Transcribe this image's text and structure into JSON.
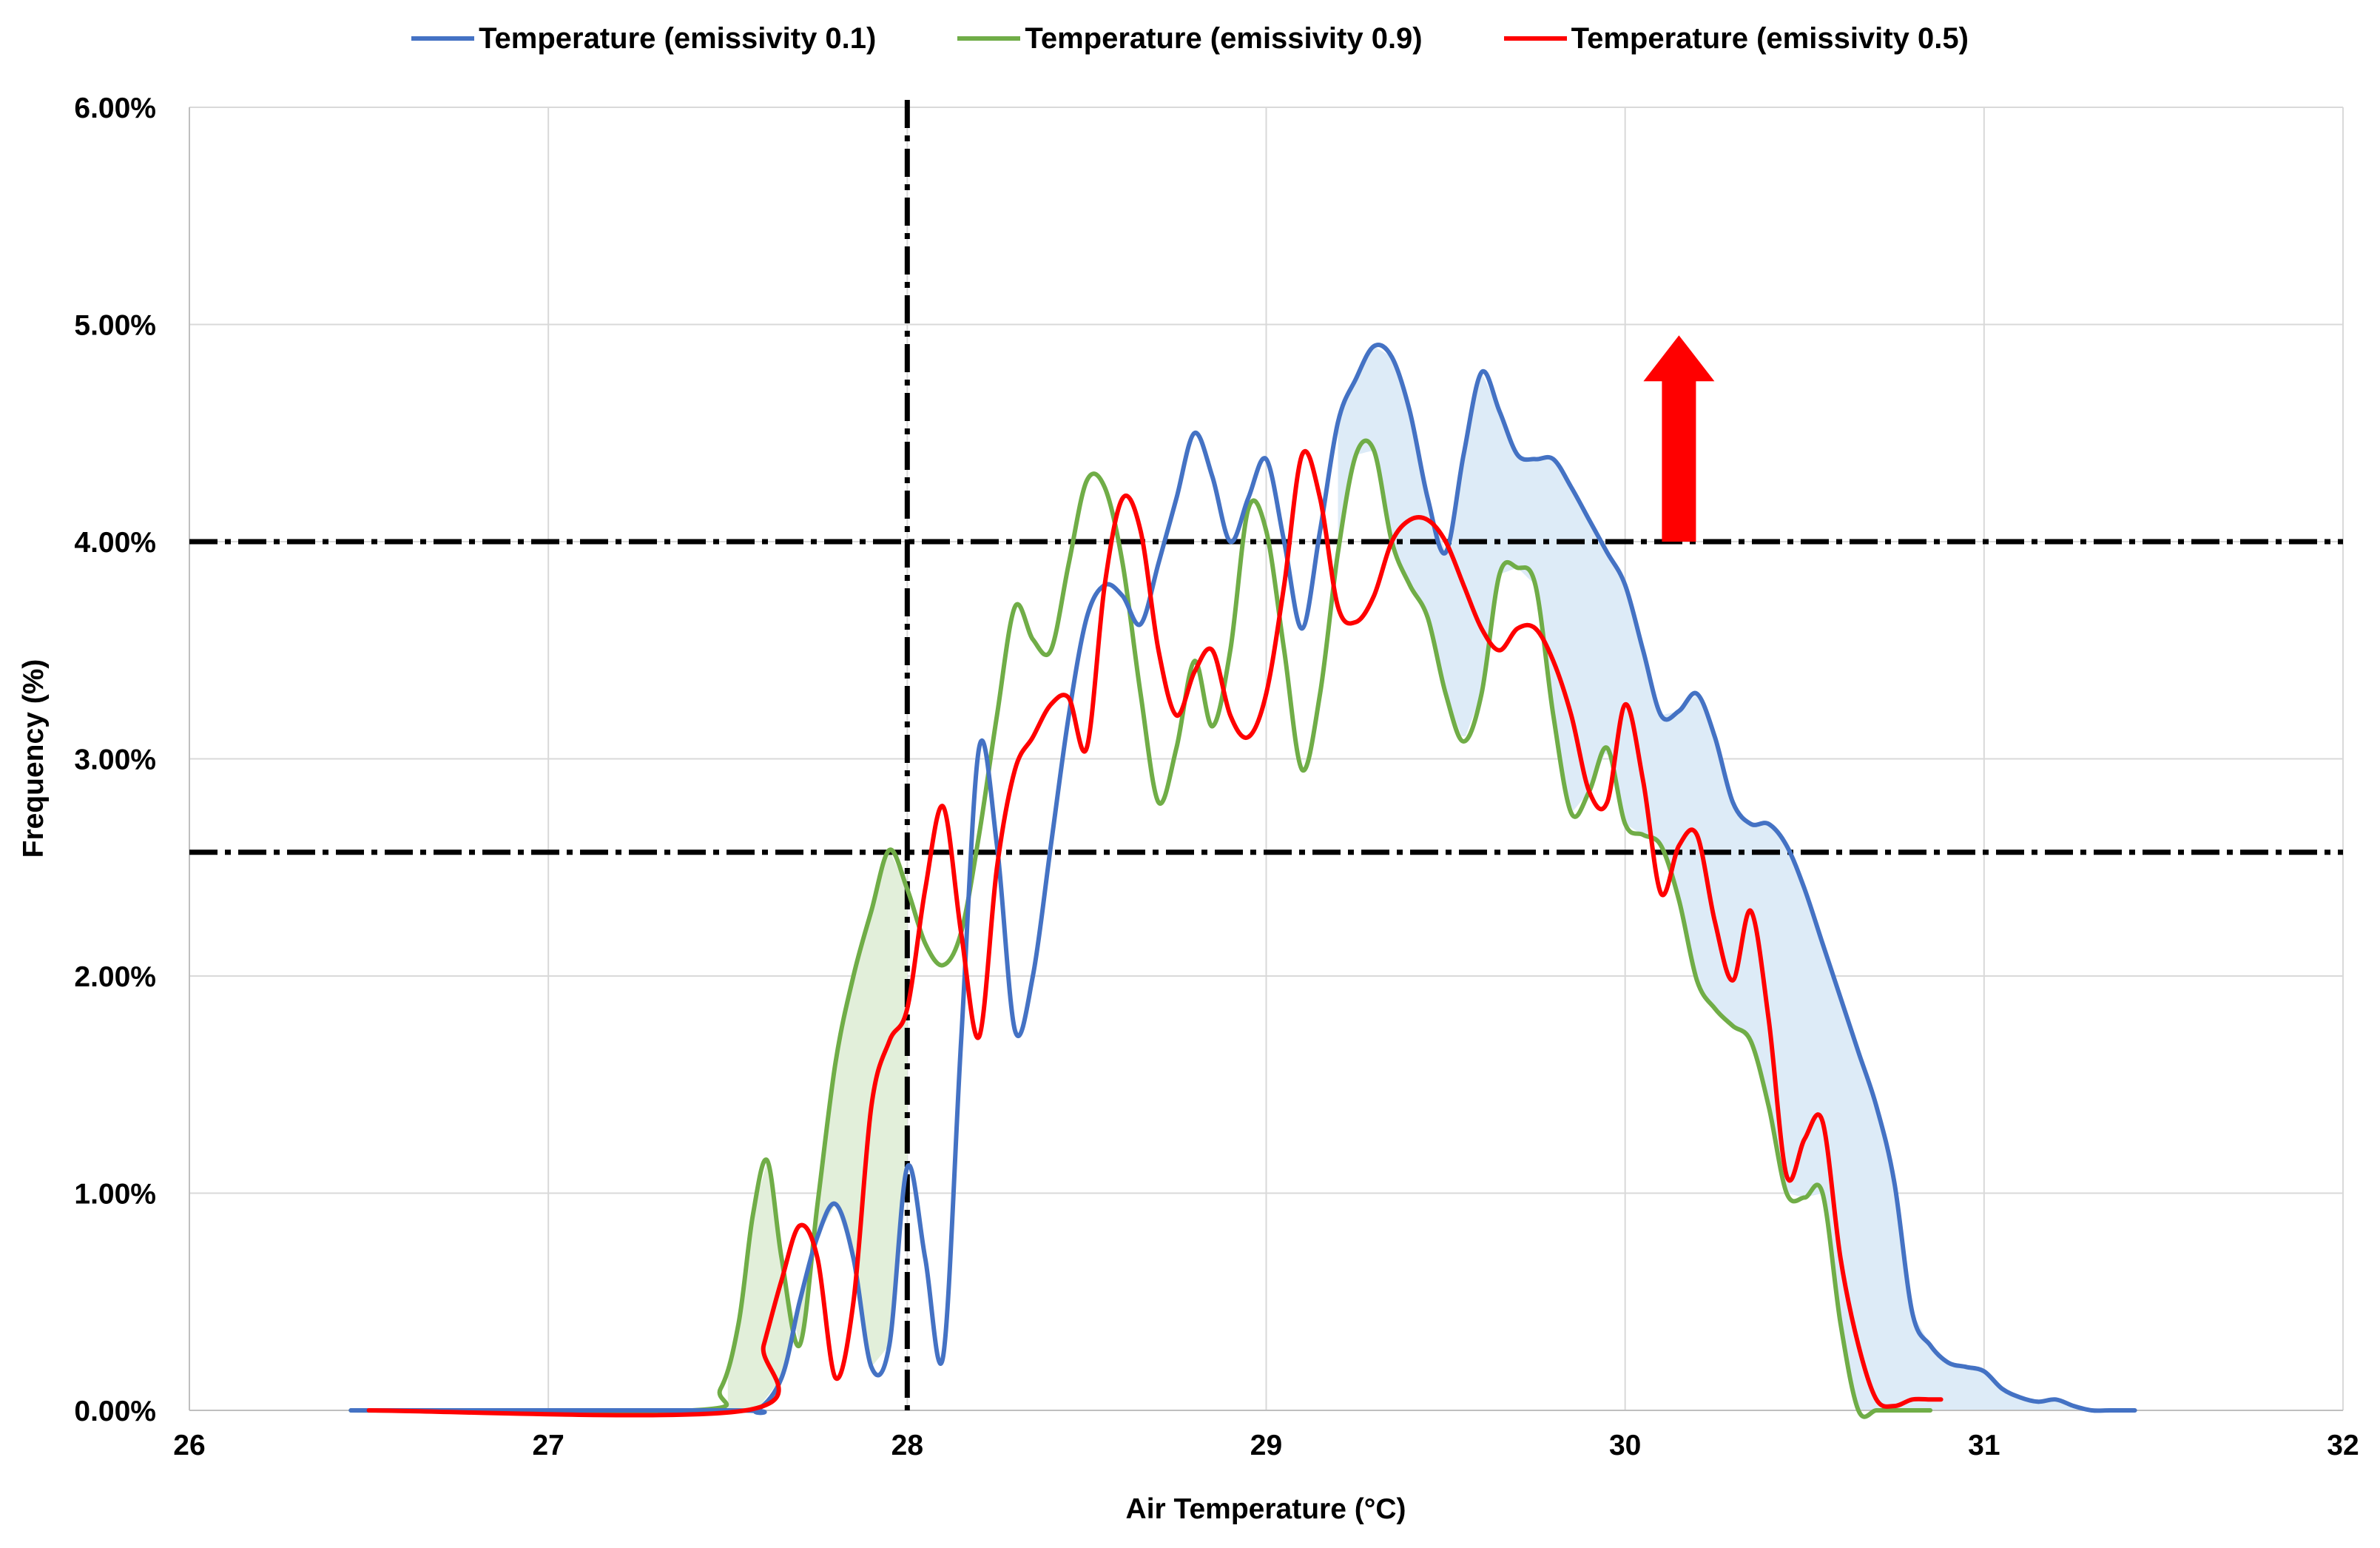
{
  "chart_data": {
    "type": "area",
    "title": "",
    "xlabel": "Air Temperature (°C)",
    "ylabel": "Frequency (%)",
    "xlim": [
      26,
      32
    ],
    "ylim": [
      0,
      6
    ],
    "x_ticks": [
      "26",
      "27",
      "28",
      "29",
      "30",
      "31",
      "32"
    ],
    "y_ticks": [
      "0.00%",
      "1.00%",
      "2.00%",
      "3.00%",
      "4.00%",
      "5.00%",
      "6.00%"
    ],
    "grid": true,
    "legend_position": "top",
    "series": [
      {
        "name": "Temperature (emissivity 0.1)",
        "color": "#4472C4",
        "x": [
          26.45,
          27.5,
          27.58,
          27.65,
          27.7,
          27.75,
          27.8,
          27.85,
          27.9,
          27.95,
          28.0,
          28.05,
          28.1,
          28.15,
          28.2,
          28.25,
          28.3,
          28.35,
          28.4,
          28.45,
          28.5,
          28.55,
          28.6,
          28.65,
          28.7,
          28.75,
          28.8,
          28.85,
          28.9,
          28.95,
          29.0,
          29.05,
          29.1,
          29.15,
          29.2,
          29.25,
          29.3,
          29.35,
          29.4,
          29.45,
          29.5,
          29.55,
          29.6,
          29.65,
          29.7,
          29.75,
          29.8,
          29.85,
          29.9,
          29.95,
          30.0,
          30.05,
          30.1,
          30.15,
          30.2,
          30.25,
          30.3,
          30.35,
          30.4,
          30.45,
          30.5,
          30.55,
          30.6,
          30.65,
          30.7,
          30.75,
          30.8,
          30.85,
          30.9,
          30.95,
          31.0,
          31.05,
          31.1,
          31.15,
          31.2,
          31.25,
          31.3,
          31.35,
          31.42
        ],
        "values": [
          0,
          0,
          0,
          0.15,
          0.5,
          0.8,
          0.95,
          0.7,
          0.2,
          0.3,
          1.12,
          0.7,
          0.25,
          1.7,
          3.05,
          2.6,
          1.75,
          2.0,
          2.6,
          3.2,
          3.65,
          3.8,
          3.75,
          3.62,
          3.9,
          4.2,
          4.5,
          4.3,
          4.0,
          4.2,
          4.38,
          4.0,
          3.6,
          4.05,
          4.55,
          4.75,
          4.9,
          4.85,
          4.6,
          4.2,
          3.95,
          4.4,
          4.78,
          4.6,
          4.4,
          4.38,
          4.38,
          4.25,
          4.1,
          3.95,
          3.8,
          3.5,
          3.2,
          3.22,
          3.3,
          3.1,
          2.8,
          2.7,
          2.7,
          2.6,
          2.4,
          2.15,
          1.9,
          1.65,
          1.4,
          1.05,
          0.45,
          0.3,
          0.22,
          0.2,
          0.18,
          0.1,
          0.06,
          0.04,
          0.05,
          0.02,
          0.0,
          0.0,
          0.0
        ]
      },
      {
        "name": "Temperature (emissivity 0.9)",
        "color": "#70AD47",
        "x": [
          26.45,
          27.4,
          27.48,
          27.53,
          27.57,
          27.61,
          27.65,
          27.7,
          27.75,
          27.8,
          27.85,
          27.9,
          27.95,
          28.0,
          28.05,
          28.1,
          28.15,
          28.2,
          28.25,
          28.3,
          28.35,
          28.4,
          28.45,
          28.5,
          28.55,
          28.6,
          28.65,
          28.7,
          28.75,
          28.8,
          28.85,
          28.9,
          28.95,
          29.0,
          29.05,
          29.1,
          29.15,
          29.2,
          29.25,
          29.3,
          29.35,
          29.4,
          29.45,
          29.5,
          29.55,
          29.6,
          29.65,
          29.7,
          29.75,
          29.8,
          29.85,
          29.9,
          29.95,
          30.0,
          30.05,
          30.1,
          30.15,
          30.2,
          30.25,
          30.3,
          30.35,
          30.4,
          30.45,
          30.5,
          30.55,
          30.6,
          30.65,
          30.7,
          30.75,
          30.85
        ],
        "values": [
          0,
          0,
          0.1,
          0.4,
          0.9,
          1.15,
          0.7,
          0.3,
          0.95,
          1.6,
          2.0,
          2.3,
          2.58,
          2.4,
          2.15,
          2.05,
          2.2,
          2.65,
          3.2,
          3.7,
          3.55,
          3.5,
          3.9,
          4.28,
          4.25,
          3.9,
          3.3,
          2.8,
          3.05,
          3.45,
          3.15,
          3.5,
          4.15,
          4.05,
          3.5,
          2.95,
          3.3,
          3.95,
          4.4,
          4.42,
          4.0,
          3.8,
          3.65,
          3.3,
          3.08,
          3.3,
          3.85,
          3.88,
          3.8,
          3.2,
          2.75,
          2.85,
          3.05,
          2.7,
          2.65,
          2.6,
          2.35,
          1.98,
          1.85,
          1.77,
          1.7,
          1.4,
          1.0,
          0.98,
          1.0,
          0.4,
          0.0,
          0.0,
          0.0,
          0.0
        ]
      },
      {
        "name": "Temperature (emissivity 0.5)",
        "color": "#FF0000",
        "x": [
          26.5,
          27.55,
          27.6,
          27.65,
          27.7,
          27.75,
          27.8,
          27.85,
          27.9,
          27.95,
          28.0,
          28.05,
          28.1,
          28.15,
          28.2,
          28.25,
          28.3,
          28.35,
          28.4,
          28.45,
          28.5,
          28.55,
          28.6,
          28.65,
          28.7,
          28.75,
          28.8,
          28.85,
          28.9,
          28.95,
          29.0,
          29.05,
          29.1,
          29.15,
          29.2,
          29.25,
          29.3,
          29.35,
          29.4,
          29.45,
          29.5,
          29.55,
          29.6,
          29.65,
          29.7,
          29.75,
          29.8,
          29.85,
          29.9,
          29.95,
          30.0,
          30.05,
          30.1,
          30.15,
          30.2,
          30.25,
          30.3,
          30.35,
          30.4,
          30.45,
          30.5,
          30.55,
          30.6,
          30.65,
          30.7,
          30.75,
          30.8,
          30.85,
          30.88
        ],
        "values": [
          0,
          0,
          0.3,
          0.6,
          0.85,
          0.7,
          0.15,
          0.5,
          1.4,
          1.7,
          1.85,
          2.4,
          2.78,
          2.2,
          1.72,
          2.5,
          2.95,
          3.1,
          3.25,
          3.28,
          3.05,
          3.8,
          4.2,
          4.05,
          3.5,
          3.2,
          3.4,
          3.5,
          3.2,
          3.1,
          3.3,
          3.8,
          4.4,
          4.2,
          3.7,
          3.63,
          3.75,
          4.0,
          4.1,
          4.1,
          4.0,
          3.8,
          3.6,
          3.5,
          3.6,
          3.6,
          3.45,
          3.2,
          2.85,
          2.8,
          3.25,
          2.9,
          2.38,
          2.6,
          2.65,
          2.25,
          1.98,
          2.3,
          1.8,
          1.08,
          1.25,
          1.33,
          0.7,
          0.3,
          0.05,
          0.02,
          0.05,
          0.05,
          0.05
        ]
      }
    ],
    "annotations": {
      "vertical_line_x": 28,
      "horizontal_lines_y": [
        4.0,
        2.57
      ],
      "shaded_band_green": {
        "between": [
          "Temperature (emissivity 0.9)",
          "Temperature (emissivity 0.1)"
        ],
        "x_range": [
          27.5,
          28.0
        ],
        "color": "#E2EFDA"
      },
      "shaded_band_blue": {
        "between": [
          "Temperature (emissivity 0.1)",
          "Temperature (emissivity 0.9)"
        ],
        "x_range": [
          29.2,
          31.42
        ],
        "color": "#DDEBF7"
      },
      "arrow": {
        "direction": "up",
        "color": "#FF0000",
        "x": 30.15,
        "from_y": 4.0,
        "to_y": 4.95
      }
    }
  }
}
